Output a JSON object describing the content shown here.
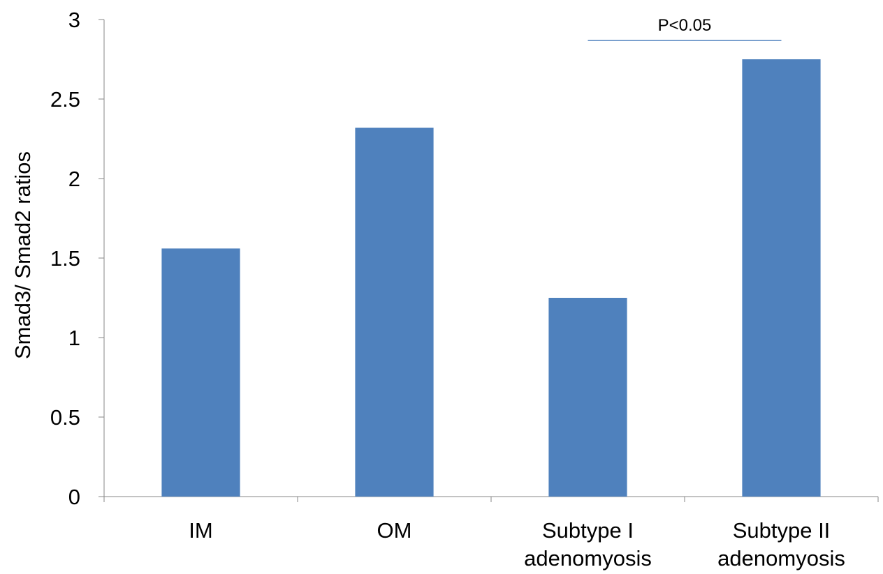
{
  "chart_data": {
    "type": "bar",
    "categories": [
      [
        "IM"
      ],
      [
        "OM"
      ],
      [
        "Subtype I",
        "adenomyosis"
      ],
      [
        "Subtype II",
        "adenomyosis"
      ]
    ],
    "values": [
      1.56,
      2.32,
      1.25,
      2.75
    ],
    "title": "",
    "xlabel": "",
    "ylabel": "Smad3/ Smad2 ratios",
    "ylim": [
      0,
      3
    ],
    "yticks": [
      "0",
      "0.5",
      "1",
      "1.5",
      "2",
      "2.5",
      "3"
    ],
    "grid": false,
    "legend": "none",
    "bar_color": "#4F81BD",
    "annotations": [
      {
        "text": "P<0.05",
        "from_category": 2,
        "to_category": 3,
        "line_color": "#4F81BD"
      }
    ]
  }
}
